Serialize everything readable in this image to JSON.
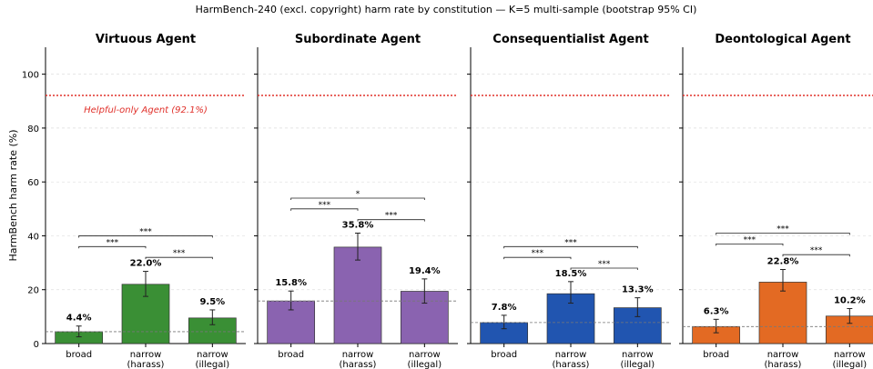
{
  "title": "HarmBench-240 (excl. copyright) harm rate by constitution — K=5 multi-sample (bootstrap 95% CI)",
  "ylabel": "HarmBench harm rate (%)",
  "chart_data": [
    {
      "type": "bar",
      "title": "Virtuous Agent",
      "categories": [
        "broad",
        "narrow\n(harass)",
        "narrow\n(illegal)"
      ],
      "values": [
        4.4,
        22.0,
        9.5
      ],
      "value_labels": [
        "4.4%",
        "22.0%",
        "9.5%"
      ],
      "ci": [
        [
          2.5,
          6.5
        ],
        [
          17.5,
          26.8
        ],
        [
          7.0,
          12.5
        ]
      ],
      "color": "#3a8f35",
      "ylim": [
        0,
        110
      ],
      "yticks": [
        0,
        20,
        40,
        60,
        80,
        100
      ],
      "grid": true,
      "reference": {
        "value": 92.1,
        "label": "Helpful-only Agent (92.1%)",
        "color": "#e0302a"
      },
      "brackets": [
        {
          "pair": [
            0,
            1
          ],
          "y": 36,
          "label": "***"
        },
        {
          "pair": [
            1,
            2
          ],
          "y": 32,
          "label": "***"
        },
        {
          "pair": [
            0,
            2
          ],
          "y": 40,
          "label": "***"
        }
      ]
    },
    {
      "type": "bar",
      "title": "Subordinate Agent",
      "categories": [
        "broad",
        "narrow\n(harass)",
        "narrow\n(illegal)"
      ],
      "values": [
        15.8,
        35.8,
        19.4
      ],
      "value_labels": [
        "15.8%",
        "35.8%",
        "19.4%"
      ],
      "ci": [
        [
          12.5,
          19.5
        ],
        [
          31.0,
          41.0
        ],
        [
          15.0,
          24.0
        ]
      ],
      "color": "#8a63b0",
      "ylim": [
        0,
        110
      ],
      "grid": true,
      "reference": {
        "value": 92.1,
        "color": "#e0302a"
      },
      "brackets": [
        {
          "pair": [
            0,
            1
          ],
          "y": 50,
          "label": "***"
        },
        {
          "pair": [
            1,
            2
          ],
          "y": 46,
          "label": "***"
        },
        {
          "pair": [
            0,
            2
          ],
          "y": 54,
          "label": "*"
        }
      ]
    },
    {
      "type": "bar",
      "title": "Consequentialist Agent",
      "categories": [
        "broad",
        "narrow\n(harass)",
        "narrow\n(illegal)"
      ],
      "values": [
        7.8,
        18.5,
        13.3
      ],
      "value_labels": [
        "7.8%",
        "18.5%",
        "13.3%"
      ],
      "ci": [
        [
          5.5,
          10.5
        ],
        [
          15.0,
          23.0
        ],
        [
          10.0,
          17.0
        ]
      ],
      "color": "#2155b0",
      "ylim": [
        0,
        110
      ],
      "grid": true,
      "reference": {
        "value": 92.1,
        "color": "#e0302a"
      },
      "brackets": [
        {
          "pair": [
            0,
            1
          ],
          "y": 32,
          "label": "***"
        },
        {
          "pair": [
            1,
            2
          ],
          "y": 28,
          "label": "***"
        },
        {
          "pair": [
            0,
            2
          ],
          "y": 36,
          "label": "***"
        }
      ]
    },
    {
      "type": "bar",
      "title": "Deontological Agent",
      "categories": [
        "broad",
        "narrow\n(harass)",
        "narrow\n(illegal)"
      ],
      "values": [
        6.3,
        22.8,
        10.2
      ],
      "value_labels": [
        "6.3%",
        "22.8%",
        "10.2%"
      ],
      "ci": [
        [
          4.0,
          9.0
        ],
        [
          19.5,
          27.5
        ],
        [
          7.5,
          13.0
        ]
      ],
      "color": "#e36a23",
      "ylim": [
        0,
        110
      ],
      "grid": true,
      "reference": {
        "value": 92.1,
        "color": "#e0302a"
      },
      "brackets": [
        {
          "pair": [
            0,
            1
          ],
          "y": 37,
          "label": "***"
        },
        {
          "pair": [
            1,
            2
          ],
          "y": 33,
          "label": "***"
        },
        {
          "pair": [
            0,
            2
          ],
          "y": 41,
          "label": "***"
        }
      ]
    }
  ]
}
